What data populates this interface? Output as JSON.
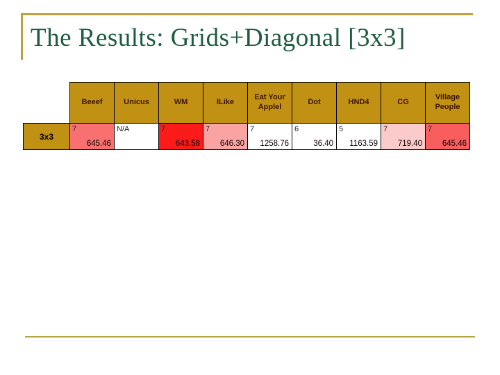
{
  "slide": {
    "title": "The Results: Grids+Diagonal [3x3]"
  },
  "colors": {
    "accent_line_gold": "#b9a23b",
    "header_gold": "#c19114",
    "title_green": "#1d5c40",
    "header_text": "#3d1400",
    "cell_salmon": "#f87070",
    "cell_bright_red": "#fb1b1b",
    "cell_pink": "#f9a3a3",
    "cell_light_pink": "#fbcbcb",
    "cell_village_red": "#f95e5e",
    "cell_white": "#ffffff"
  },
  "table": {
    "row_label": "3x3",
    "columns": [
      {
        "label": "Beeef",
        "rank": "7",
        "value": "645.46",
        "bg": "#f87070"
      },
      {
        "label": "Unicus",
        "rank": "N/A",
        "value": "",
        "bg": "#ffffff"
      },
      {
        "label": "WM",
        "rank": "7",
        "value": "643.58",
        "bg": "#fb1b1b"
      },
      {
        "label": "ILike",
        "rank": "7",
        "value": "646.30",
        "bg": "#f9a3a3"
      },
      {
        "label": "Eat Your Applel",
        "rank": "7",
        "value": "1258.76",
        "bg": "#ffffff"
      },
      {
        "label": "Dot",
        "rank": "6",
        "value": "36.40",
        "bg": "#ffffff"
      },
      {
        "label": "HND4",
        "rank": "5",
        "value": "1163.59",
        "bg": "#ffffff"
      },
      {
        "label": "CG",
        "rank": "7",
        "value": "719.40",
        "bg": "#fbcbcb"
      },
      {
        "label": "Village People",
        "rank": "7",
        "value": "645.46",
        "bg": "#f95e5e"
      }
    ]
  }
}
